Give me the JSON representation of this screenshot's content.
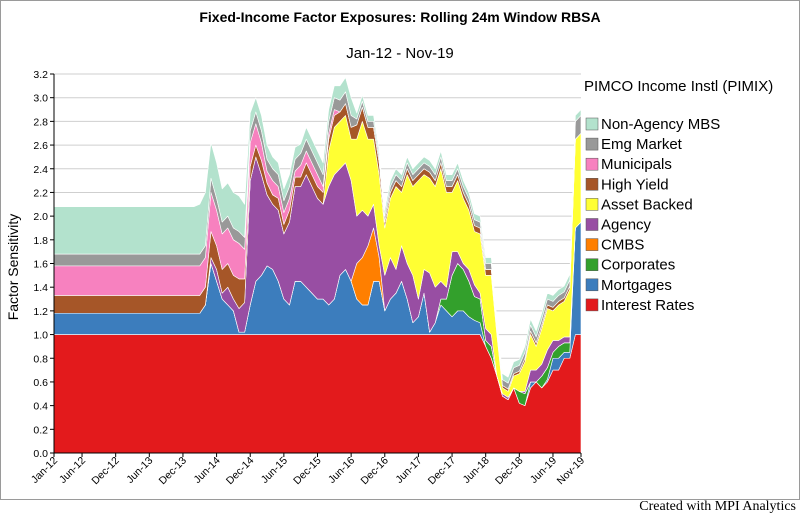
{
  "chart_data": {
    "type": "area",
    "stacked": true,
    "title": "Fixed-Income Factor Exposures: Rolling 24m Window RBSA",
    "subtitle": "Jan-12 - Nov-19",
    "ylabel": "Factor Sensitivity",
    "xlabel": "",
    "fund_name": "PIMCO Income Instl (PIMIX)",
    "ylim": [
      0,
      3.2
    ],
    "yticks": [
      "0.0",
      "0.2",
      "0.4",
      "0.6",
      "0.8",
      "1.0",
      "1.2",
      "1.4",
      "1.6",
      "1.8",
      "2.0",
      "2.2",
      "2.4",
      "2.6",
      "2.8",
      "3.0",
      "3.2"
    ],
    "xtick_labels": [
      "Jan-12",
      "Jun-12",
      "Dec-12",
      "Jun-13",
      "Dec-13",
      "Jun-14",
      "Dec-14",
      "Jun-15",
      "Dec-15",
      "Jun-16",
      "Dec-16",
      "Jun-17",
      "Dec-17",
      "Jun-18",
      "Dec-18",
      "Jun-19",
      "Nov-19"
    ],
    "xtick_months": [
      0,
      5,
      11,
      17,
      23,
      29,
      35,
      41,
      47,
      53,
      59,
      65,
      71,
      77,
      83,
      89,
      94
    ],
    "legend_position": "right",
    "grid": true,
    "series": [
      {
        "name": "Interest Rates",
        "color": "#e31a1c",
        "values": [
          1.0,
          1.0,
          1.0,
          1.0,
          1.0,
          1.0,
          1.0,
          1.0,
          1.0,
          1.0,
          1.0,
          1.0,
          1.0,
          1.0,
          1.0,
          1.0,
          1.0,
          1.0,
          1.0,
          1.0,
          1.0,
          1.0,
          1.0,
          1.0,
          1.0,
          1.0,
          1.0,
          1.0,
          1.0,
          1.0,
          1.0,
          1.0,
          1.0,
          1.0,
          1.0,
          1.0,
          1.0,
          1.0,
          1.0,
          1.0,
          1.0,
          1.0,
          1.0,
          1.0,
          1.0,
          1.0,
          1.0,
          1.0,
          1.0,
          1.0,
          1.0,
          1.0,
          1.0,
          1.0,
          1.0,
          1.0,
          1.0,
          1.0,
          1.0,
          1.0,
          1.0,
          1.0,
          1.0,
          1.0,
          1.0,
          1.0,
          1.0,
          1.0,
          1.0,
          1.0,
          1.0,
          1.0,
          1.0,
          1.0,
          1.0,
          1.0,
          1.0,
          0.9,
          0.8,
          0.65,
          0.48,
          0.45,
          0.55,
          0.42,
          0.4,
          0.55,
          0.6,
          0.55,
          0.6,
          0.7,
          0.7,
          0.8,
          0.8,
          1.0,
          1.0
        ]
      },
      {
        "name": "Mortgages",
        "color": "#3c7dbd",
        "values": [
          0.18,
          0.18,
          0.18,
          0.18,
          0.18,
          0.18,
          0.18,
          0.18,
          0.18,
          0.18,
          0.18,
          0.18,
          0.18,
          0.18,
          0.18,
          0.18,
          0.18,
          0.18,
          0.18,
          0.18,
          0.18,
          0.18,
          0.18,
          0.18,
          0.18,
          0.18,
          0.18,
          0.25,
          0.6,
          0.45,
          0.3,
          0.25,
          0.2,
          0.02,
          0.02,
          0.25,
          0.45,
          0.5,
          0.58,
          0.55,
          0.45,
          0.3,
          0.25,
          0.45,
          0.45,
          0.4,
          0.35,
          0.3,
          0.3,
          0.25,
          0.3,
          0.5,
          0.55,
          0.45,
          0.3,
          0.25,
          0.25,
          0.45,
          0.45,
          0.2,
          0.3,
          0.35,
          0.45,
          0.3,
          0.1,
          0.15,
          0.35,
          0.02,
          0.1,
          0.25,
          0.2,
          0.15,
          0.2,
          0.2,
          0.15,
          0.12,
          0.1,
          0.0,
          0.0,
          0.0,
          0.0,
          0.0,
          0.0,
          0.0,
          0.0,
          0.05,
          0.0,
          0.0,
          0.02,
          0.1,
          0.1,
          0.05,
          0.05,
          0.9,
          0.95
        ]
      },
      {
        "name": "Corporates",
        "color": "#33a02c",
        "values": [
          0,
          0,
          0,
          0,
          0,
          0,
          0,
          0,
          0,
          0,
          0,
          0,
          0,
          0,
          0,
          0,
          0,
          0,
          0,
          0,
          0,
          0,
          0,
          0,
          0,
          0,
          0,
          0,
          0,
          0,
          0,
          0,
          0,
          0,
          0,
          0,
          0,
          0,
          0,
          0,
          0,
          0,
          0,
          0,
          0,
          0,
          0,
          0,
          0,
          0,
          0,
          0,
          0,
          0,
          0,
          0,
          0,
          0,
          0,
          0,
          0,
          0,
          0,
          0,
          0,
          0,
          0,
          0,
          0,
          0.05,
          0.1,
          0.35,
          0.4,
          0.35,
          0.3,
          0.2,
          0.2,
          0.05,
          0.1,
          0.0,
          0.0,
          0.0,
          0.0,
          0.1,
          0.1,
          0.0,
          0.0,
          0.1,
          0.1,
          0.05,
          0.1,
          0.08,
          0.08,
          0.0,
          0.0
        ]
      },
      {
        "name": "CMBS",
        "color": "#ff7f00",
        "values": [
          0,
          0,
          0,
          0,
          0,
          0,
          0,
          0,
          0,
          0,
          0,
          0,
          0,
          0,
          0,
          0,
          0,
          0,
          0,
          0,
          0,
          0,
          0,
          0,
          0,
          0,
          0,
          0,
          0,
          0,
          0,
          0,
          0,
          0,
          0,
          0,
          0,
          0,
          0,
          0,
          0,
          0,
          0,
          0,
          0,
          0,
          0,
          0,
          0,
          0,
          0,
          0,
          0,
          0,
          0.3,
          0.4,
          0.5,
          0.45,
          0.2,
          0,
          0,
          0,
          0,
          0,
          0,
          0,
          0,
          0,
          0,
          0,
          0,
          0,
          0,
          0,
          0,
          0,
          0,
          0,
          0,
          0,
          0,
          0,
          0,
          0,
          0,
          0,
          0,
          0,
          0,
          0,
          0,
          0,
          0,
          0,
          0
        ]
      },
      {
        "name": "Agency",
        "color": "#984ea3",
        "values": [
          0,
          0,
          0,
          0,
          0,
          0,
          0,
          0,
          0,
          0,
          0,
          0,
          0,
          0,
          0,
          0,
          0,
          0,
          0,
          0,
          0,
          0,
          0,
          0,
          0,
          0,
          0,
          0,
          0.05,
          0.1,
          0.05,
          0.15,
          0.1,
          0.2,
          0.25,
          1.05,
          1.05,
          0.85,
          0.6,
          0.55,
          0.6,
          0.55,
          0.7,
          0.8,
          0.8,
          0.95,
          0.9,
          0.85,
          0.8,
          1.0,
          1.05,
          0.9,
          0.9,
          0.85,
          0.4,
          0.4,
          0.25,
          0.2,
          0.1,
          0.3,
          0.35,
          0.2,
          0.3,
          0.3,
          0.4,
          0.15,
          0.2,
          0.5,
          0.3,
          0.15,
          0.1,
          0.2,
          0.1,
          0.05,
          0.1,
          0.1,
          0.05,
          0.1,
          0.1,
          0.0,
          0.02,
          0.02,
          0.0,
          0.0,
          0.02,
          0.1,
          0.1,
          0.1,
          0.15,
          0.1,
          0.05,
          0.05,
          0.05,
          0.0,
          0.0
        ]
      },
      {
        "name": "Asset Backed",
        "color": "#ffff33",
        "values": [
          0,
          0,
          0,
          0,
          0,
          0,
          0,
          0,
          0,
          0,
          0,
          0,
          0,
          0,
          0,
          0,
          0,
          0,
          0,
          0,
          0,
          0,
          0,
          0,
          0,
          0,
          0,
          0,
          0,
          0,
          0,
          0,
          0,
          0,
          0,
          0,
          0,
          0,
          0,
          0,
          0,
          0,
          0,
          0,
          0,
          0,
          0,
          0,
          0,
          0.3,
          0.4,
          0.4,
          0.4,
          0.35,
          0.65,
          0.75,
          0.65,
          0.55,
          0.6,
          0.4,
          0.5,
          0.7,
          0.45,
          0.75,
          0.75,
          1.0,
          0.8,
          0.8,
          0.85,
          0.95,
          0.8,
          0.5,
          0.6,
          0.55,
          0.5,
          0.45,
          0.5,
          0.45,
          0.5,
          0.35,
          0.05,
          0.05,
          0.1,
          0.15,
          0.25,
          0.3,
          0.2,
          0.3,
          0.35,
          0.25,
          0.3,
          0.3,
          0.4,
          0.75,
          0.75
        ]
      },
      {
        "name": "High Yield",
        "color": "#a65628",
        "values": [
          0.15,
          0.15,
          0.15,
          0.15,
          0.15,
          0.15,
          0.15,
          0.15,
          0.15,
          0.15,
          0.15,
          0.15,
          0.15,
          0.15,
          0.15,
          0.15,
          0.15,
          0.15,
          0.15,
          0.15,
          0.15,
          0.15,
          0.15,
          0.15,
          0.15,
          0.15,
          0.15,
          0.15,
          0.22,
          0.2,
          0.2,
          0.2,
          0.2,
          0.25,
          0.2,
          0.12,
          0.1,
          0.12,
          0.1,
          0.08,
          0.1,
          0.08,
          0.1,
          0.08,
          0.08,
          0.1,
          0.1,
          0.1,
          0.1,
          0.1,
          0.1,
          0.08,
          0.1,
          0.1,
          0.12,
          0.12,
          0.1,
          0.1,
          0.1,
          0.05,
          0.05,
          0.05,
          0.05,
          0.05,
          0.05,
          0.05,
          0.05,
          0.05,
          0.05,
          0.05,
          0.05,
          0.05,
          0.05,
          0.05,
          0.05,
          0.05,
          0.05,
          0.05,
          0.05,
          0.03,
          0.02,
          0.02,
          0.02,
          0.02,
          0.03,
          0.03,
          0.03,
          0.03,
          0.03,
          0.03,
          0.03,
          0.03,
          0.03,
          0.0,
          0.0
        ]
      },
      {
        "name": "Municipals",
        "color": "#f781bf",
        "values": [
          0.25,
          0.25,
          0.25,
          0.25,
          0.25,
          0.25,
          0.25,
          0.25,
          0.25,
          0.25,
          0.25,
          0.25,
          0.25,
          0.25,
          0.25,
          0.25,
          0.25,
          0.25,
          0.25,
          0.25,
          0.25,
          0.25,
          0.25,
          0.25,
          0.25,
          0.25,
          0.25,
          0.25,
          0.33,
          0.3,
          0.3,
          0.3,
          0.3,
          0.3,
          0.25,
          0.2,
          0.18,
          0.15,
          0.1,
          0.12,
          0.1,
          0.1,
          0.1,
          0.05,
          0.1,
          0.1,
          0.1,
          0.1,
          0.05,
          0.05,
          0.05,
          0.0,
          0.0,
          0.0,
          0.0,
          0.0,
          0.0,
          0.0,
          0.0,
          0.0,
          0.0,
          0.0,
          0.0,
          0.0,
          0.0,
          0.0,
          0.0,
          0.0,
          0.0,
          0.0,
          0.0,
          0.0,
          0.0,
          0.0,
          0.0,
          0.0,
          0.0,
          0.0,
          0.0,
          0.0,
          0.0,
          0.0,
          0.0,
          0.0,
          0.0,
          0.0,
          0.0,
          0.0,
          0.0,
          0.0,
          0.0,
          0.0,
          0.0,
          0.0,
          0.0
        ]
      },
      {
        "name": "Emg Market",
        "color": "#999999",
        "values": [
          0.1,
          0.1,
          0.1,
          0.1,
          0.1,
          0.1,
          0.1,
          0.1,
          0.1,
          0.1,
          0.1,
          0.1,
          0.1,
          0.1,
          0.1,
          0.1,
          0.1,
          0.1,
          0.1,
          0.1,
          0.1,
          0.1,
          0.1,
          0.1,
          0.1,
          0.1,
          0.1,
          0.1,
          0.12,
          0.1,
          0.1,
          0.1,
          0.1,
          0.1,
          0.1,
          0.1,
          0.1,
          0.1,
          0.1,
          0.1,
          0.1,
          0.1,
          0.1,
          0.1,
          0.1,
          0.1,
          0.1,
          0.1,
          0.1,
          0.1,
          0.1,
          0.1,
          0.1,
          0.1,
          0.05,
          0.05,
          0.05,
          0.05,
          0.05,
          0.05,
          0.05,
          0.05,
          0.05,
          0.05,
          0.05,
          0.05,
          0.05,
          0.05,
          0.05,
          0.05,
          0.05,
          0.05,
          0.05,
          0.05,
          0.05,
          0.05,
          0.05,
          0.05,
          0.05,
          0.05,
          0.05,
          0.05,
          0.05,
          0.05,
          0.05,
          0.05,
          0.05,
          0.05,
          0.05,
          0.05,
          0.05,
          0.05,
          0.05,
          0.15,
          0.15
        ]
      },
      {
        "name": "Non-Agency MBS",
        "color": "#b3e2cd",
        "values": [
          0.4,
          0.4,
          0.4,
          0.4,
          0.4,
          0.4,
          0.4,
          0.4,
          0.4,
          0.4,
          0.4,
          0.4,
          0.4,
          0.4,
          0.4,
          0.4,
          0.4,
          0.4,
          0.4,
          0.4,
          0.4,
          0.4,
          0.4,
          0.4,
          0.4,
          0.4,
          0.42,
          0.45,
          0.3,
          0.3,
          0.28,
          0.28,
          0.3,
          0.3,
          0.28,
          0.15,
          0.12,
          0.13,
          0.12,
          0.1,
          0.1,
          0.1,
          0.1,
          0.1,
          0.08,
          0.1,
          0.1,
          0.1,
          0.1,
          0.1,
          0.1,
          0.12,
          0.12,
          0.15,
          0.05,
          0.05,
          0.05,
          0.05,
          0.05,
          0.05,
          0.05,
          0.05,
          0.05,
          0.05,
          0.05,
          0.05,
          0.05,
          0.05,
          0.05,
          0.05,
          0.05,
          0.05,
          0.05,
          0.05,
          0.05,
          0.05,
          0.05,
          0.05,
          0.05,
          0.05,
          0.05,
          0.05,
          0.05,
          0.05,
          0.05,
          0.05,
          0.05,
          0.05,
          0.05,
          0.05,
          0.05,
          0.05,
          0.05,
          0.05,
          0.05
        ]
      }
    ]
  },
  "footer": {
    "credit": "Created with MPI Analytics"
  }
}
